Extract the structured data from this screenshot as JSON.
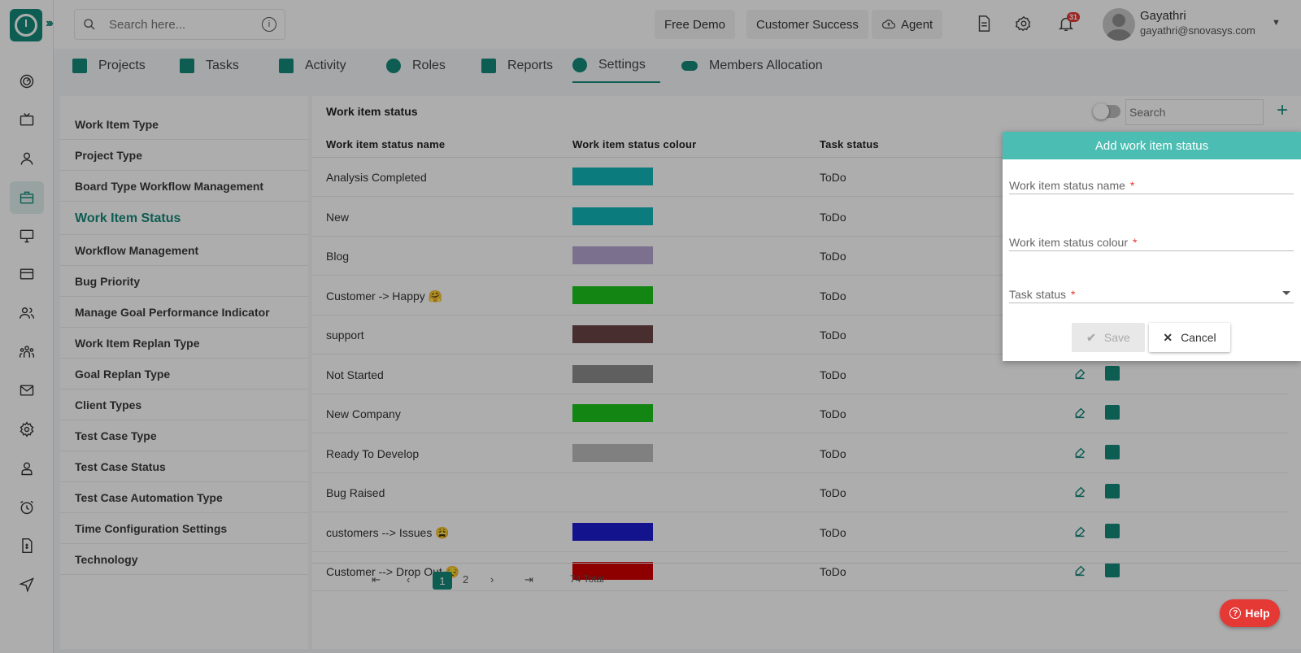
{
  "topbar": {
    "search_placeholder": "Search here...",
    "free_demo": "Free Demo",
    "customer_success": "Customer Success",
    "agent": "Agent",
    "notification_count": "31",
    "user_name": "Gayathri",
    "user_email": "gayathri@snovasys.com"
  },
  "tabs": [
    {
      "label": "Projects"
    },
    {
      "label": "Tasks"
    },
    {
      "label": "Activity"
    },
    {
      "label": "Roles"
    },
    {
      "label": "Reports"
    },
    {
      "label": "Settings"
    },
    {
      "label": "Members Allocation"
    }
  ],
  "menu": [
    "Work Item Type",
    "Project Type",
    "Board Type Workflow Management",
    "Work Item Status",
    "Workflow Management",
    "Bug Priority",
    "Manage Goal Performance Indicator",
    "Work Item Replan Type",
    "Goal Replan Type",
    "Client Types",
    "Test Case Type",
    "Test Case Status",
    "Test Case Automation Type",
    "Time Configuration Settings",
    "Technology"
  ],
  "panel": {
    "title": "Work item status",
    "search_placeholder": "Search",
    "columns": [
      "Work item status name",
      "Work item status colour",
      "Task status"
    ]
  },
  "rows": [
    {
      "name": "Analysis Completed",
      "color": "#13b6b8",
      "task": "ToDo"
    },
    {
      "name": "New",
      "color": "#13b6b8",
      "task": "ToDo"
    },
    {
      "name": "Blog",
      "color": "#b6a6d2",
      "task": "ToDo"
    },
    {
      "name": "Customer -> Happy 🤗",
      "color": "#1bc41c",
      "task": "ToDo"
    },
    {
      "name": "support",
      "color": "#6a4545",
      "task": "ToDo"
    },
    {
      "name": "Not Started",
      "color": "#8d8d8d",
      "task": "ToDo"
    },
    {
      "name": "New Company",
      "color": "#1bc41c",
      "task": "ToDo"
    },
    {
      "name": "Ready To Develop",
      "color": "#bdbdbd",
      "task": "ToDo"
    },
    {
      "name": "Bug Raised",
      "color": "#ffffff",
      "task": "ToDo"
    },
    {
      "name": "customers --> Issues 😩",
      "color": "#1d1dd0",
      "task": "ToDo"
    },
    {
      "name": "Customer --> Drop Out 😔",
      "color": "#d10000",
      "task": "ToDo"
    }
  ],
  "pager": {
    "page1": "1",
    "page2": "2",
    "total": "74 Total"
  },
  "dialog": {
    "title": "Add work item status",
    "name_label": "Work item status name",
    "colour_label": "Work item status colour",
    "task_label": "Task status",
    "required_mark": "*",
    "save": "Save",
    "cancel": "Cancel"
  },
  "help": "Help",
  "accent": "#15897b"
}
